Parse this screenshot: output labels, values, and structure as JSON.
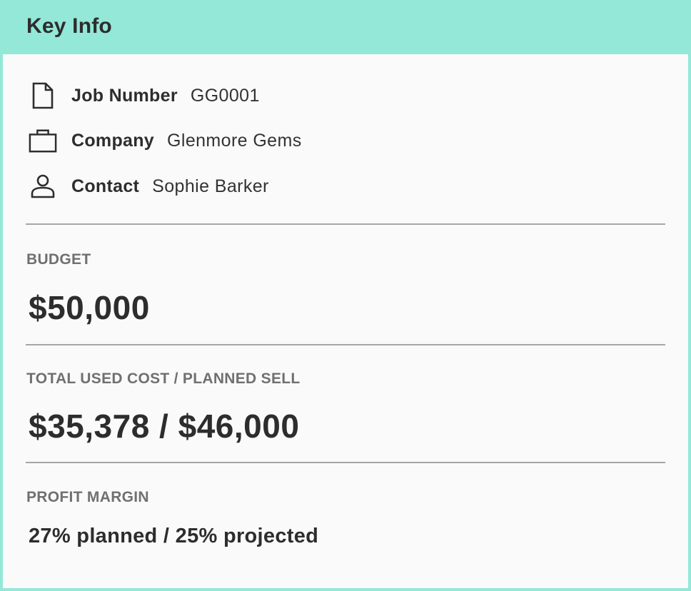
{
  "header": {
    "title": "Key Info"
  },
  "info": [
    {
      "icon": "document-icon",
      "label": "Job Number",
      "value": "GG0001"
    },
    {
      "icon": "briefcase-icon",
      "label": "Company",
      "value": "Glenmore Gems"
    },
    {
      "icon": "person-icon",
      "label": "Contact",
      "value": "Sophie Barker"
    }
  ],
  "budget": {
    "label": "BUDGET",
    "value": "$50,000"
  },
  "cost": {
    "label": "TOTAL USED COST / PLANNED SELL",
    "value": "$35,378 / $46,000"
  },
  "margin": {
    "label": "PROFIT MARGIN",
    "value": "27% planned / 25% projected"
  },
  "colors": {
    "header_bg": "#93e8d8",
    "panel_bg": "#fafafa",
    "text": "#2d2d2d",
    "muted": "#707070",
    "divider": "#a6a6a6"
  }
}
